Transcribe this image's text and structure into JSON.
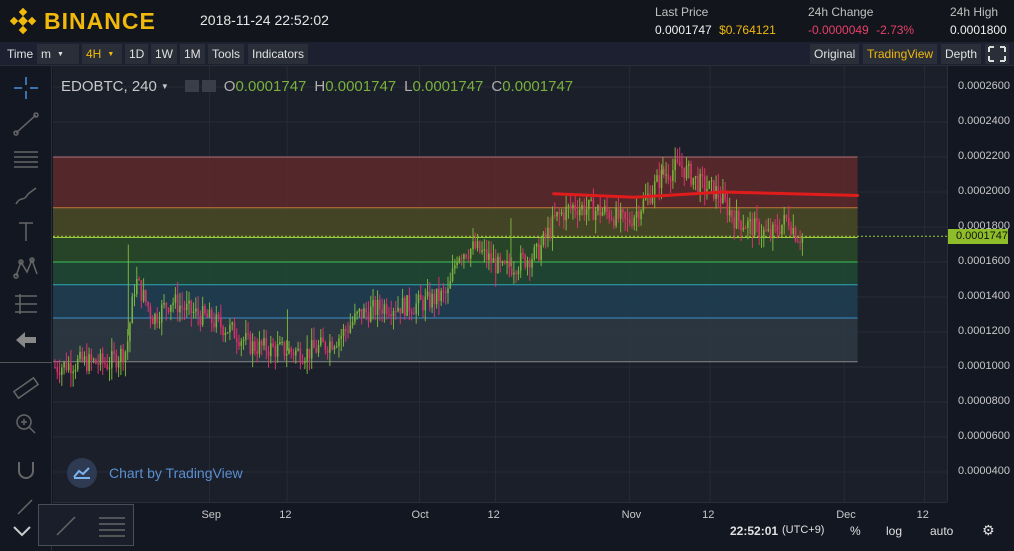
{
  "header": {
    "brand": "BINANCE",
    "datetime": "2018-11-24 22:52:02",
    "last_price_label": "Last Price",
    "last_price_btc": "0.0001747",
    "last_price_usd": "$0.764121",
    "change_label": "24h Change",
    "change_value": "-0.0000049",
    "change_pct": "-2.73%",
    "high_label": "24h High",
    "high_value": "0.0001800"
  },
  "toolbar": {
    "time": "Time",
    "minute": "m",
    "interval": "4H",
    "d1": "1D",
    "w1": "1W",
    "m1": "1M",
    "tools": "Tools",
    "indicators": "Indicators",
    "original": "Original",
    "tradingview": "TradingView",
    "depth": "Depth"
  },
  "legend": {
    "symbol": "EDOBTC, 240",
    "o_label": "O",
    "o_value": "0.0001747",
    "h_label": "H",
    "h_value": "0.0001747",
    "l_label": "L",
    "l_value": "0.0001747",
    "c_label": "C",
    "c_value": "0.0001747"
  },
  "credit": "Chart by TradingView",
  "colors": {
    "bg": "#131722",
    "up": "#79b13c",
    "down": "#d6336c",
    "accent": "#f0b90b",
    "resistance": "#e01b1b"
  },
  "price_axis": {
    "ticks": [
      "0.0002600",
      "0.0002400",
      "0.0002200",
      "0.0002000",
      "0.0001800",
      "0.0001600",
      "0.0001400",
      "0.0001200",
      "0.0001000",
      "0.0000800",
      "0.0000600",
      "0.0000400"
    ],
    "last_tag": "0.0001747"
  },
  "time_axis": {
    "ticks": [
      "Sep",
      "12",
      "Oct",
      "12",
      "Nov",
      "12",
      "Dec",
      "12"
    ]
  },
  "status": {
    "clock": "22:52:01",
    "tz": "(UTC+9)",
    "pct": "%",
    "log": "log",
    "auto": "auto"
  },
  "chart_data": {
    "type": "candlestick",
    "symbol": "EDOBTC",
    "interval": "240",
    "ylim": [
      3e-05,
      0.00027
    ],
    "x_axis_ticks": [
      "Sep",
      "12",
      "Oct",
      "12",
      "Nov",
      "12",
      "Dec",
      "12"
    ],
    "last_price": 0.0001747,
    "fib_levels": [
      0.00022,
      0.000191,
      0.000174,
      0.00016,
      0.000147,
      0.000128,
      0.000103
    ],
    "fib_colors": [
      "#5e2a2a",
      "#4a4a25",
      "#294a28",
      "#1f4a35",
      "#1f3f52",
      "#2d3a44",
      "#33373f"
    ],
    "resistance_line": [
      [
        0.56,
        0.000199
      ],
      [
        0.65,
        0.000197
      ],
      [
        0.75,
        0.0002
      ],
      [
        0.9,
        0.000198
      ]
    ],
    "approx_close_path": [
      [
        0.0,
        0.0001
      ],
      [
        0.03,
        0.000103
      ],
      [
        0.06,
        0.000102
      ],
      [
        0.08,
        0.00011
      ],
      [
        0.09,
        0.00015
      ],
      [
        0.11,
        0.000128
      ],
      [
        0.13,
        0.000138
      ],
      [
        0.15,
        0.000132
      ],
      [
        0.17,
        0.000128
      ],
      [
        0.2,
        0.00012
      ],
      [
        0.22,
        0.000112
      ],
      [
        0.25,
        0.00011
      ],
      [
        0.28,
        0.000108
      ],
      [
        0.3,
        0.000112
      ],
      [
        0.32,
        0.000118
      ],
      [
        0.34,
        0.00013
      ],
      [
        0.37,
        0.000135
      ],
      [
        0.4,
        0.000135
      ],
      [
        0.42,
        0.000138
      ],
      [
        0.44,
        0.000142
      ],
      [
        0.45,
        0.000165
      ],
      [
        0.47,
        0.000168
      ],
      [
        0.49,
        0.00016
      ],
      [
        0.5,
        0.000155
      ],
      [
        0.52,
        0.00016
      ],
      [
        0.54,
        0.000165
      ],
      [
        0.56,
        0.000185
      ],
      [
        0.58,
        0.000192
      ],
      [
        0.6,
        0.00019
      ],
      [
        0.62,
        0.000188
      ],
      [
        0.64,
        0.000182
      ],
      [
        0.66,
        0.000195
      ],
      [
        0.68,
        0.00021
      ],
      [
        0.7,
        0.000215
      ],
      [
        0.72,
        0.000205
      ],
      [
        0.74,
        0.0002
      ],
      [
        0.76,
        0.000185
      ],
      [
        0.78,
        0.00018
      ],
      [
        0.8,
        0.000175
      ],
      [
        0.82,
        0.000185
      ],
      [
        0.83,
        0.000175
      ],
      [
        0.836,
        0.0001747
      ]
    ]
  }
}
